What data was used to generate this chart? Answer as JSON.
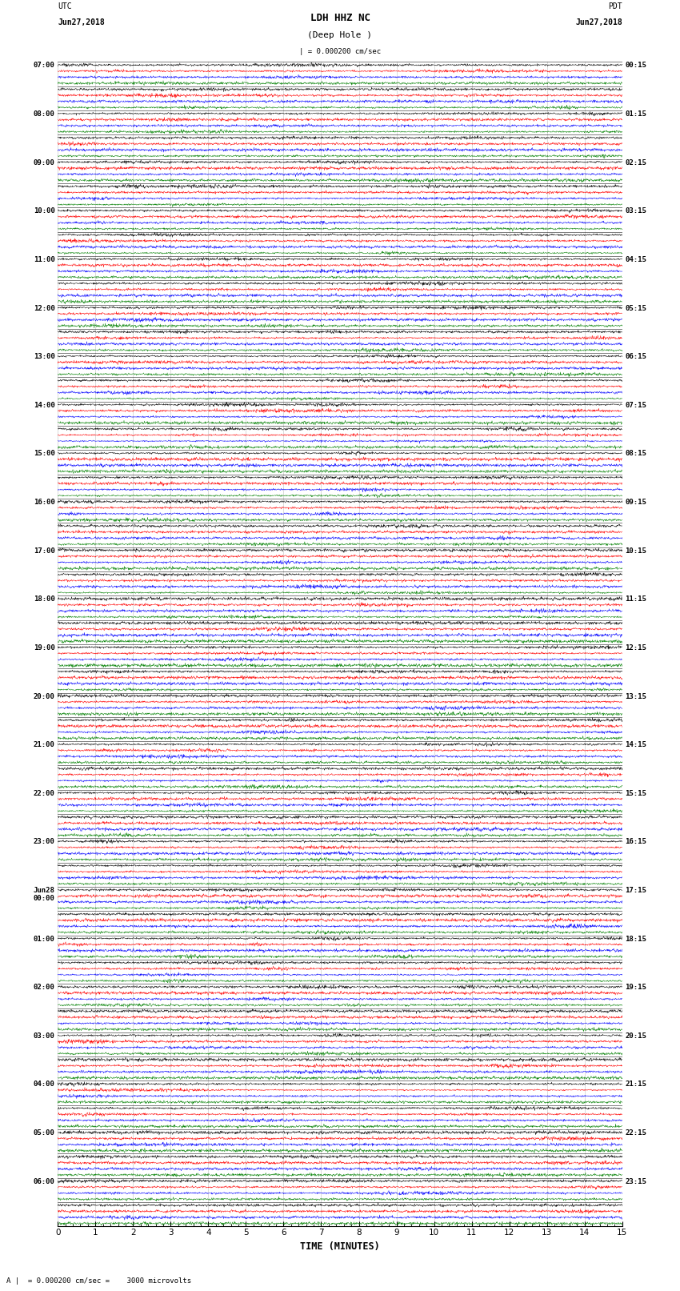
{
  "title_center": "LDH HHZ NC",
  "title_sub": "(Deep Hole )",
  "title_left_line1": "UTC",
  "title_left_line2": "Jun27,2018",
  "title_right_line1": "PDT",
  "title_right_line2": "Jun27,2018",
  "scale_label": "| = 0.000200 cm/sec",
  "bottom_label": "A |  = 0.000200 cm/sec =    3000 microvolts",
  "xlabel": "TIME (MINUTES)",
  "colors": [
    "black",
    "red",
    "blue",
    "green"
  ],
  "traces_per_group": 4,
  "num_groups": 48,
  "fig_width": 8.5,
  "fig_height": 16.13,
  "left_times_utc": [
    "07:00",
    "08:00",
    "09:00",
    "10:00",
    "11:00",
    "12:00",
    "13:00",
    "14:00",
    "15:00",
    "16:00",
    "17:00",
    "18:00",
    "19:00",
    "20:00",
    "21:00",
    "22:00",
    "23:00",
    "Jun28\n00:00",
    "01:00",
    "02:00",
    "03:00",
    "04:00",
    "05:00",
    "06:00"
  ],
  "right_times_pdt": [
    "00:15",
    "01:15",
    "02:15",
    "03:15",
    "04:15",
    "05:15",
    "06:15",
    "07:15",
    "08:15",
    "09:15",
    "10:15",
    "11:15",
    "12:15",
    "13:15",
    "14:15",
    "15:15",
    "16:15",
    "17:15",
    "18:15",
    "19:15",
    "20:15",
    "21:15",
    "22:15",
    "23:15"
  ],
  "x_ticks": [
    0,
    1,
    2,
    3,
    4,
    5,
    6,
    7,
    8,
    9,
    10,
    11,
    12,
    13,
    14,
    15
  ],
  "xlim": [
    0,
    15
  ],
  "noise_seed": 12345,
  "dpi": 100
}
